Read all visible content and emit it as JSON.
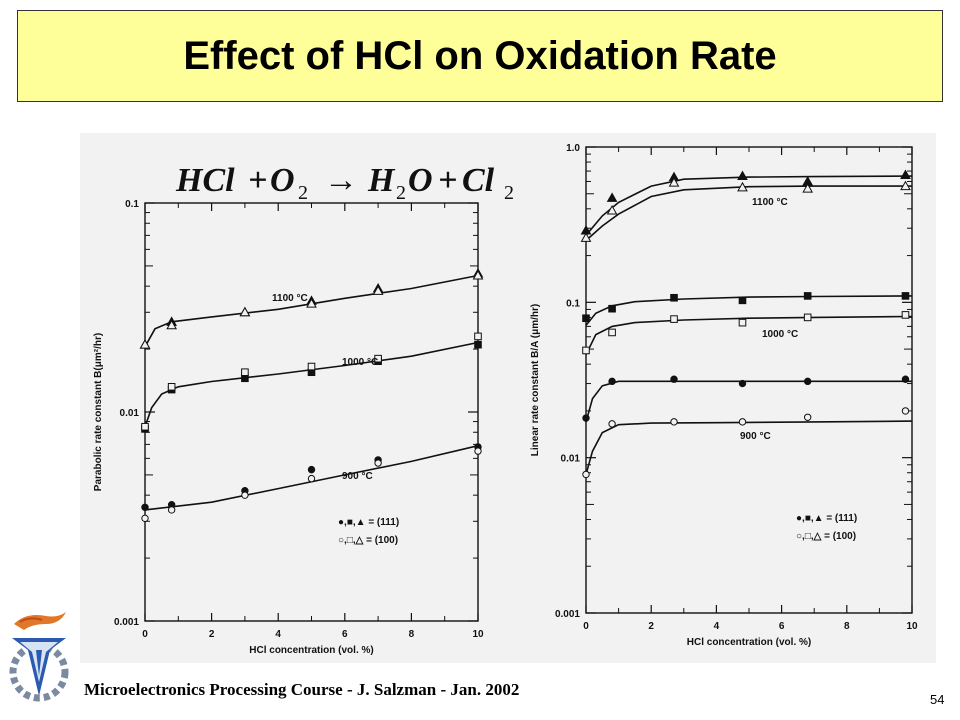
{
  "slide": {
    "title": "Effect of HCl on Oxidation Rate",
    "footer": "Microelectronics Processing Course - J. Salzman - Jan. 2002",
    "page_number": "54"
  },
  "equation": {
    "hcl": "HCl",
    "plus1": "+",
    "o": "O",
    "o_sub": "2",
    "arrow": "→",
    "h": "H",
    "h_sub": "2",
    "o2": "O",
    "plus2": "+",
    "cl": "Cl",
    "cl_sub": "2"
  },
  "chart_data": [
    {
      "type": "scatter",
      "xlabel": "HCl concentration (vol. %)",
      "ylabel": "Parabolic rate constant B(μm²/hr)",
      "yscale": "log",
      "xlim": [
        0,
        10
      ],
      "ylim": [
        0.001,
        0.1
      ],
      "xticks": [
        "0",
        "2",
        "4",
        "6",
        "8",
        "10"
      ],
      "yticks": [
        "0.1",
        "0.01",
        "0.001"
      ],
      "legend": [
        "●,■,▲ = (111)",
        "○,□,△ = (100)"
      ],
      "legend_position": "bottom-right",
      "series": [
        {
          "name": "1100 °C",
          "orientation": "(111)",
          "marker": "filled-triangle",
          "x": [
            0,
            0.8,
            3,
            5,
            7,
            10
          ],
          "y": [
            0.021,
            0.027,
            0.03,
            0.034,
            0.039,
            0.046
          ]
        },
        {
          "name": "1100 °C",
          "orientation": "(100)",
          "marker": "open-triangle",
          "x": [
            0,
            0.8,
            3,
            5,
            7,
            10
          ],
          "y": [
            0.021,
            0.026,
            0.03,
            0.033,
            0.038,
            0.045
          ]
        },
        {
          "name": "1000 °C",
          "orientation": "(111)",
          "marker": "filled-square",
          "x": [
            0,
            0.8,
            3,
            5,
            7,
            10
          ],
          "y": [
            0.0083,
            0.0128,
            0.0145,
            0.0155,
            0.0175,
            0.021
          ]
        },
        {
          "name": "1000 °C",
          "orientation": "(100)",
          "marker": "open-square",
          "x": [
            0,
            0.8,
            3,
            5,
            7,
            10
          ],
          "y": [
            0.0085,
            0.0132,
            0.0155,
            0.0165,
            0.018,
            0.023
          ]
        },
        {
          "name": "900 °C",
          "orientation": "(111)",
          "marker": "filled-circle",
          "x": [
            0,
            0.8,
            3,
            5,
            7,
            10
          ],
          "y": [
            0.0035,
            0.0036,
            0.0042,
            0.0053,
            0.0059,
            0.0068
          ]
        },
        {
          "name": "900 °C",
          "orientation": "(100)",
          "marker": "open-circle",
          "x": [
            0,
            0.8,
            3,
            5,
            7,
            10
          ],
          "y": [
            0.0031,
            0.0034,
            0.004,
            0.0048,
            0.0057,
            0.0065
          ]
        }
      ],
      "fit_curves": [
        {
          "name": "1100 °C",
          "x": [
            0,
            0.3,
            0.8,
            2,
            4,
            6,
            8,
            10
          ],
          "y": [
            0.0205,
            0.025,
            0.027,
            0.0285,
            0.031,
            0.035,
            0.039,
            0.045
          ]
        },
        {
          "name": "1000 °C",
          "x": [
            0,
            0.2,
            0.5,
            1,
            2,
            4,
            6,
            8,
            10
          ],
          "y": [
            0.0085,
            0.0105,
            0.0122,
            0.0132,
            0.014,
            0.0152,
            0.0167,
            0.0185,
            0.0215
          ]
        },
        {
          "name": "900 °C",
          "x": [
            0,
            2,
            4,
            6,
            8,
            10
          ],
          "y": [
            0.0034,
            0.0037,
            0.0043,
            0.005,
            0.0058,
            0.0069
          ]
        }
      ]
    },
    {
      "type": "scatter",
      "xlabel": "HCl concentration (vol. %)",
      "ylabel": "Linear rate constant B/A (μm/hr)",
      "yscale": "log",
      "xlim": [
        0,
        10
      ],
      "ylim": [
        0.001,
        1.0
      ],
      "xticks": [
        "0",
        "2",
        "4",
        "6",
        "8",
        "10"
      ],
      "yticks": [
        "1.0",
        "0.1",
        "0.01",
        "0.001"
      ],
      "legend": [
        "●,■,▲ = (111)",
        "○,□,△ = (100)"
      ],
      "legend_position": "bottom-right",
      "series": [
        {
          "name": "1100 °C",
          "orientation": "(111)",
          "marker": "filled-triangle",
          "x": [
            0,
            0.8,
            2.7,
            4.8,
            6.8,
            9.8
          ],
          "y": [
            0.29,
            0.47,
            0.64,
            0.65,
            0.6,
            0.66
          ]
        },
        {
          "name": "1100 °C",
          "orientation": "(100)",
          "marker": "open-triangle",
          "x": [
            0,
            0.8,
            2.7,
            4.8,
            6.8,
            9.8
          ],
          "y": [
            0.26,
            0.39,
            0.59,
            0.55,
            0.54,
            0.56
          ]
        },
        {
          "name": "1000 °C",
          "orientation": "(111)",
          "marker": "filled-square",
          "x": [
            0,
            0.8,
            2.7,
            4.8,
            6.8,
            9.8
          ],
          "y": [
            0.079,
            0.091,
            0.107,
            0.103,
            0.11,
            0.11
          ]
        },
        {
          "name": "1000 °C",
          "orientation": "(100)",
          "marker": "open-square",
          "x": [
            0,
            0.8,
            2.7,
            4.8,
            6.8,
            9.8
          ],
          "y": [
            0.049,
            0.064,
            0.078,
            0.074,
            0.08,
            0.083
          ]
        },
        {
          "name": "900 °C",
          "orientation": "(111)",
          "marker": "filled-circle",
          "x": [
            0,
            0.8,
            2.7,
            4.8,
            6.8,
            9.8
          ],
          "y": [
            0.018,
            0.031,
            0.032,
            0.03,
            0.031,
            0.032
          ]
        },
        {
          "name": "900 °C",
          "orientation": "(100)",
          "marker": "open-circle",
          "x": [
            0,
            0.8,
            2.7,
            4.8,
            6.8,
            9.8
          ],
          "y": [
            0.0078,
            0.0165,
            0.017,
            0.017,
            0.0182,
            0.02
          ]
        }
      ],
      "fit_curves": [
        {
          "name": "1100 °C",
          "x": [
            0,
            0.5,
            1,
            2,
            3,
            5,
            7,
            10
          ],
          "y": [
            0.27,
            0.36,
            0.44,
            0.56,
            0.62,
            0.64,
            0.645,
            0.65
          ]
        },
        {
          "name": "1100 °C",
          "x": [
            0,
            0.5,
            1,
            2,
            3,
            5,
            7,
            10
          ],
          "y": [
            0.25,
            0.31,
            0.37,
            0.48,
            0.53,
            0.555,
            0.56,
            0.56
          ]
        },
        {
          "name": "1000 °C",
          "x": [
            0,
            0.3,
            0.8,
            1.5,
            3,
            5,
            7,
            10
          ],
          "y": [
            0.071,
            0.085,
            0.095,
            0.101,
            0.105,
            0.108,
            0.109,
            0.11
          ]
        },
        {
          "name": "1000 °C",
          "x": [
            0,
            0.3,
            0.8,
            1.5,
            3,
            5,
            7,
            10
          ],
          "y": [
            0.046,
            0.062,
            0.07,
            0.074,
            0.077,
            0.079,
            0.08,
            0.081
          ]
        },
        {
          "name": "900 °C",
          "x": [
            0,
            0.2,
            0.5,
            1,
            2,
            4,
            7,
            10
          ],
          "y": [
            0.017,
            0.024,
            0.029,
            0.031,
            0.031,
            0.031,
            0.031,
            0.031
          ]
        },
        {
          "name": "900 °C",
          "x": [
            0,
            0.2,
            0.5,
            1,
            2,
            4,
            7,
            10
          ],
          "y": [
            0.0078,
            0.011,
            0.0145,
            0.0163,
            0.0167,
            0.0168,
            0.017,
            0.0172
          ]
        }
      ]
    }
  ]
}
